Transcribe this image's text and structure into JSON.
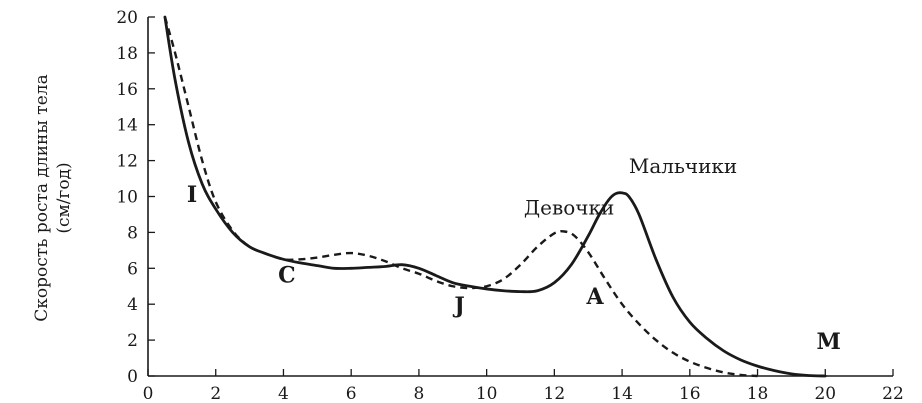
{
  "chart_data": {
    "type": "line",
    "title": "",
    "xlabel": "",
    "ylabel_line1": "Скорость роста длины тела",
    "ylabel_line2": "(см/год)",
    "xlim": [
      0,
      22
    ],
    "ylim": [
      0,
      20
    ],
    "x_ticks": [
      0,
      2,
      4,
      6,
      8,
      10,
      12,
      14,
      16,
      18,
      20,
      22
    ],
    "y_ticks": [
      0,
      2,
      4,
      6,
      8,
      10,
      12,
      14,
      16,
      18,
      20
    ],
    "grid": false,
    "series": [
      {
        "name": "Мальчики",
        "style": "solid",
        "color": "#1a1a1a",
        "x": [
          0.5,
          0.8,
          1.2,
          1.6,
          2,
          2.5,
          3,
          3.5,
          4,
          4.5,
          5,
          5.5,
          6,
          6.5,
          7,
          7.5,
          8,
          8.5,
          9,
          9.5,
          10,
          10.5,
          11,
          11.5,
          12,
          12.5,
          13,
          13.3,
          13.6,
          13.8,
          14,
          14.2,
          14.5,
          15,
          15.5,
          16,
          16.5,
          17,
          17.5,
          18,
          18.5,
          19,
          19.5,
          20
        ],
        "y": [
          20,
          16.5,
          13,
          10.7,
          9.3,
          8.0,
          7.2,
          6.8,
          6.5,
          6.3,
          6.15,
          6.0,
          6.0,
          6.05,
          6.1,
          6.2,
          6.0,
          5.6,
          5.2,
          5.0,
          4.85,
          4.75,
          4.7,
          4.75,
          5.2,
          6.2,
          7.8,
          8.9,
          9.8,
          10.15,
          10.2,
          10.0,
          9.0,
          6.5,
          4.4,
          3.0,
          2.1,
          1.4,
          0.9,
          0.55,
          0.3,
          0.12,
          0.03,
          0
        ]
      },
      {
        "name": "Девочки",
        "style": "dashed",
        "color": "#1a1a1a",
        "x": [
          0.5,
          0.8,
          1.2,
          1.6,
          2,
          2.5,
          3,
          3.5,
          4,
          4.5,
          5,
          5.5,
          6,
          6.5,
          7,
          7.5,
          8,
          8.5,
          9,
          9.5,
          10,
          10.5,
          11,
          11.5,
          12,
          12.3,
          12.6,
          13,
          13.5,
          14,
          14.5,
          15,
          15.5,
          16,
          16.5,
          17,
          17.5,
          18
        ],
        "y": [
          20,
          18.0,
          15.0,
          12.0,
          9.7,
          8.1,
          7.2,
          6.8,
          6.5,
          6.5,
          6.6,
          6.75,
          6.85,
          6.7,
          6.4,
          6.0,
          5.7,
          5.3,
          5.0,
          4.9,
          5.0,
          5.4,
          6.2,
          7.2,
          7.95,
          8.05,
          7.8,
          6.9,
          5.4,
          4.0,
          2.9,
          2.0,
          1.3,
          0.8,
          0.45,
          0.2,
          0.06,
          0
        ]
      }
    ],
    "series_labels": [
      {
        "text": "Мальчики",
        "x": 14.2,
        "y": 11.3
      },
      {
        "text": "Девочки",
        "x": 11.1,
        "y": 9.0
      }
    ],
    "phase_labels": [
      {
        "text": "I",
        "x": 1.3,
        "y": 9.7
      },
      {
        "text": "C",
        "x": 4.1,
        "y": 5.2
      },
      {
        "text": "J",
        "x": 9.2,
        "y": 3.5
      },
      {
        "text": "A",
        "x": 13.2,
        "y": 4.0
      },
      {
        "text": "M",
        "x": 20.1,
        "y": 1.5
      }
    ]
  }
}
